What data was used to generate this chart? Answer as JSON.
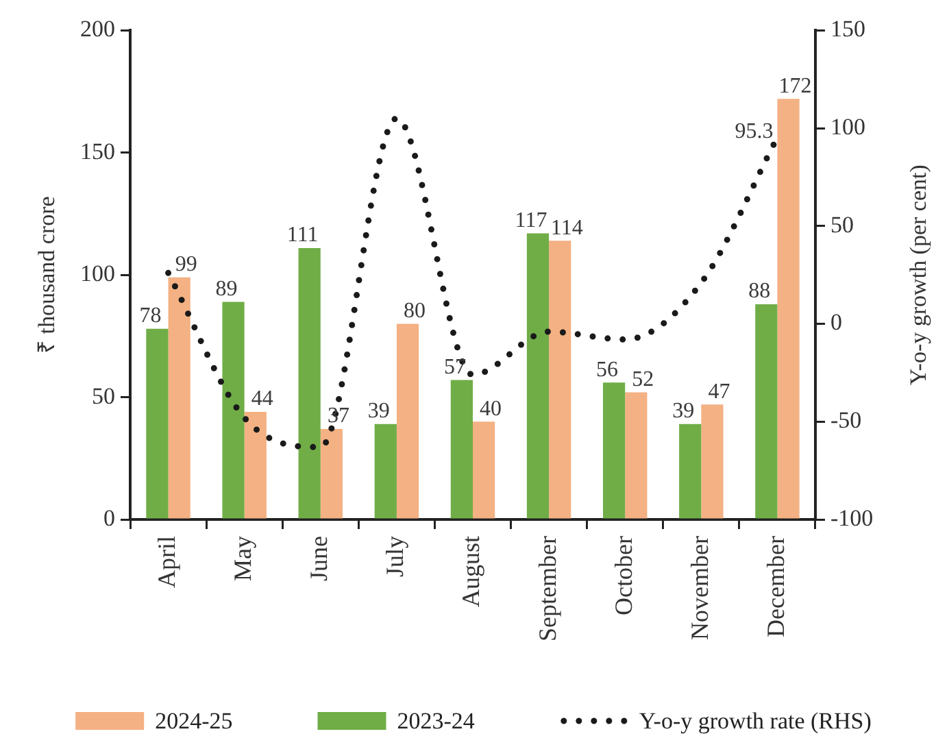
{
  "chart_data": {
    "type": "bar",
    "categories": [
      "April",
      "May",
      "June",
      "July",
      "August",
      "September",
      "October",
      "November",
      "December"
    ],
    "series": [
      {
        "name": "2024-25",
        "color": "#f4b183",
        "values": [
          99,
          44,
          37,
          80,
          40,
          114,
          52,
          47,
          172
        ],
        "value_labels": [
          "99",
          "44",
          "37",
          "80",
          "40",
          "114",
          "52",
          "47",
          "172"
        ]
      },
      {
        "name": "2023-24",
        "color": "#70ad47",
        "values": [
          78,
          89,
          111,
          39,
          57,
          117,
          56,
          39,
          88
        ],
        "value_labels": [
          "78",
          "89",
          "111",
          "39",
          "57",
          "117",
          "56",
          "39",
          "88"
        ]
      },
      {
        "name": "Y-o-y growth rate (RHS)",
        "type": "line",
        "axis": "y2",
        "color": "#1a1a1a",
        "values": [
          26,
          -48,
          -63,
          105,
          -26,
          -4,
          -8,
          21,
          95.3
        ],
        "value_labels": [
          null,
          null,
          null,
          null,
          null,
          null,
          null,
          null,
          "95.3"
        ]
      }
    ],
    "ylabel": "₹ thousand crore",
    "y2label": "Y-o-y growth (per cent)",
    "ylim": [
      0,
      200
    ],
    "yticks": [
      0,
      50,
      100,
      150,
      200
    ],
    "y2lim": [
      -100,
      150
    ],
    "y2ticks": [
      -100,
      -50,
      0,
      50,
      100,
      150
    ],
    "grid": false,
    "legend": "bottom",
    "line_style": "dotted",
    "marker": "none"
  }
}
